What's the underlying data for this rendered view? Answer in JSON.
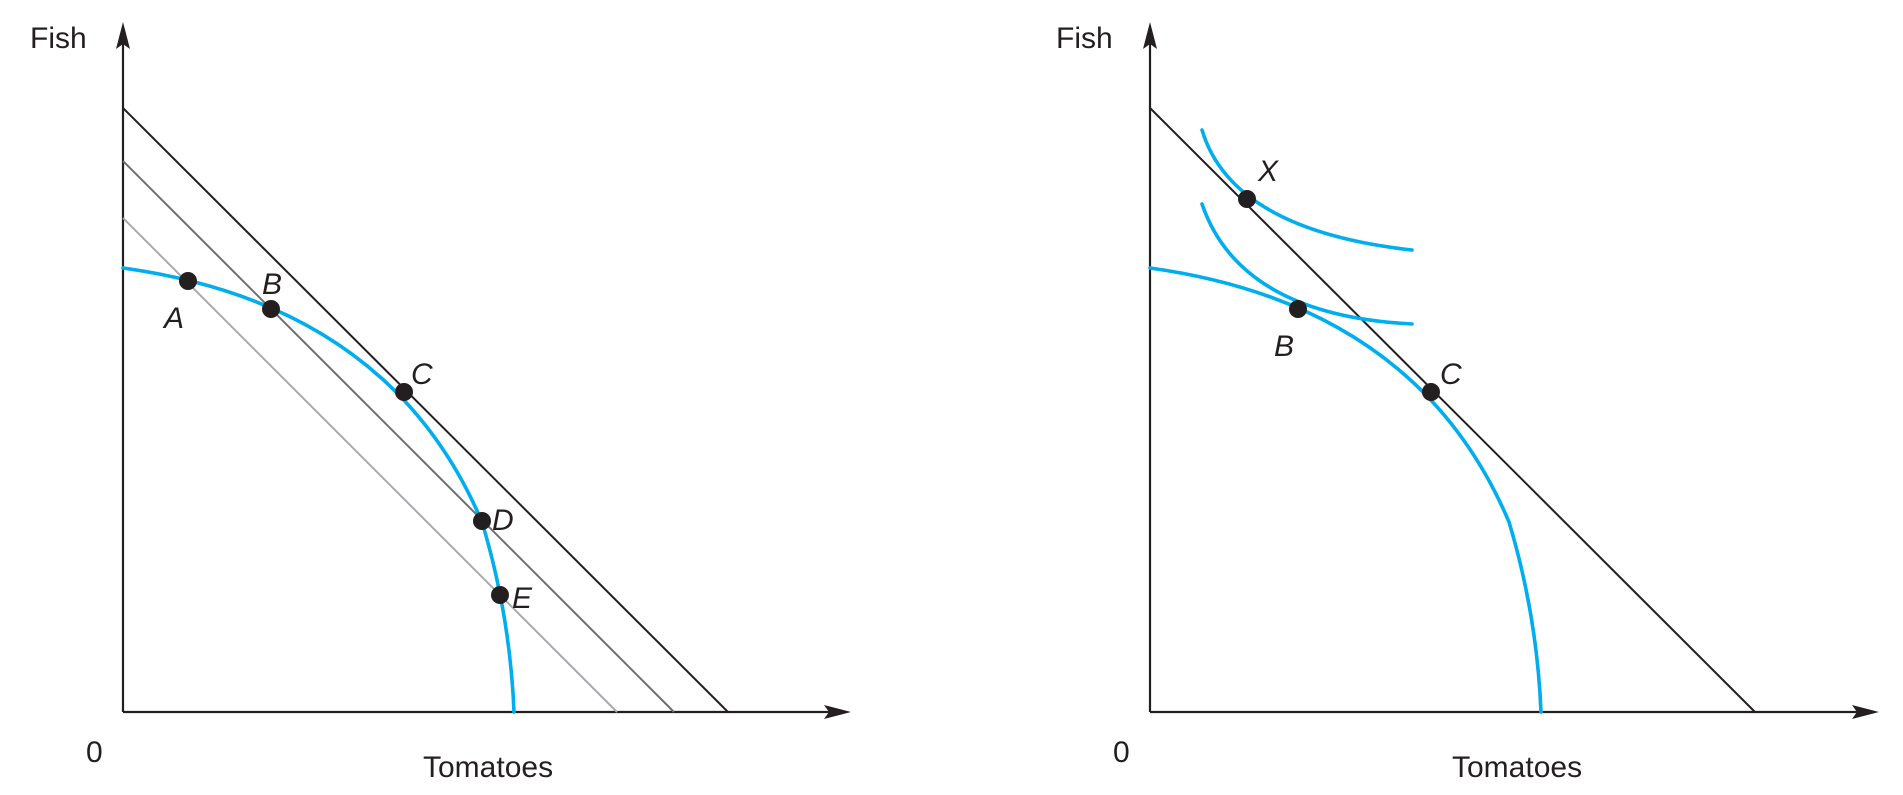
{
  "colors": {
    "curve": "#00aeef",
    "axis": "#231f20",
    "line_dark": "#231f20",
    "line_mid": "#6d6e71",
    "line_light": "#a7a9ac",
    "dot": "#231f20"
  },
  "left_panel": {
    "y_axis_label": "Fish",
    "x_axis_label": "Tomatoes",
    "origin_label": "0",
    "points": [
      "A",
      "B",
      "C",
      "D",
      "E"
    ]
  },
  "right_panel": {
    "y_axis_label": "Fish",
    "x_axis_label": "Tomatoes",
    "origin_label": "0",
    "points": [
      "X",
      "B",
      "C"
    ]
  }
}
